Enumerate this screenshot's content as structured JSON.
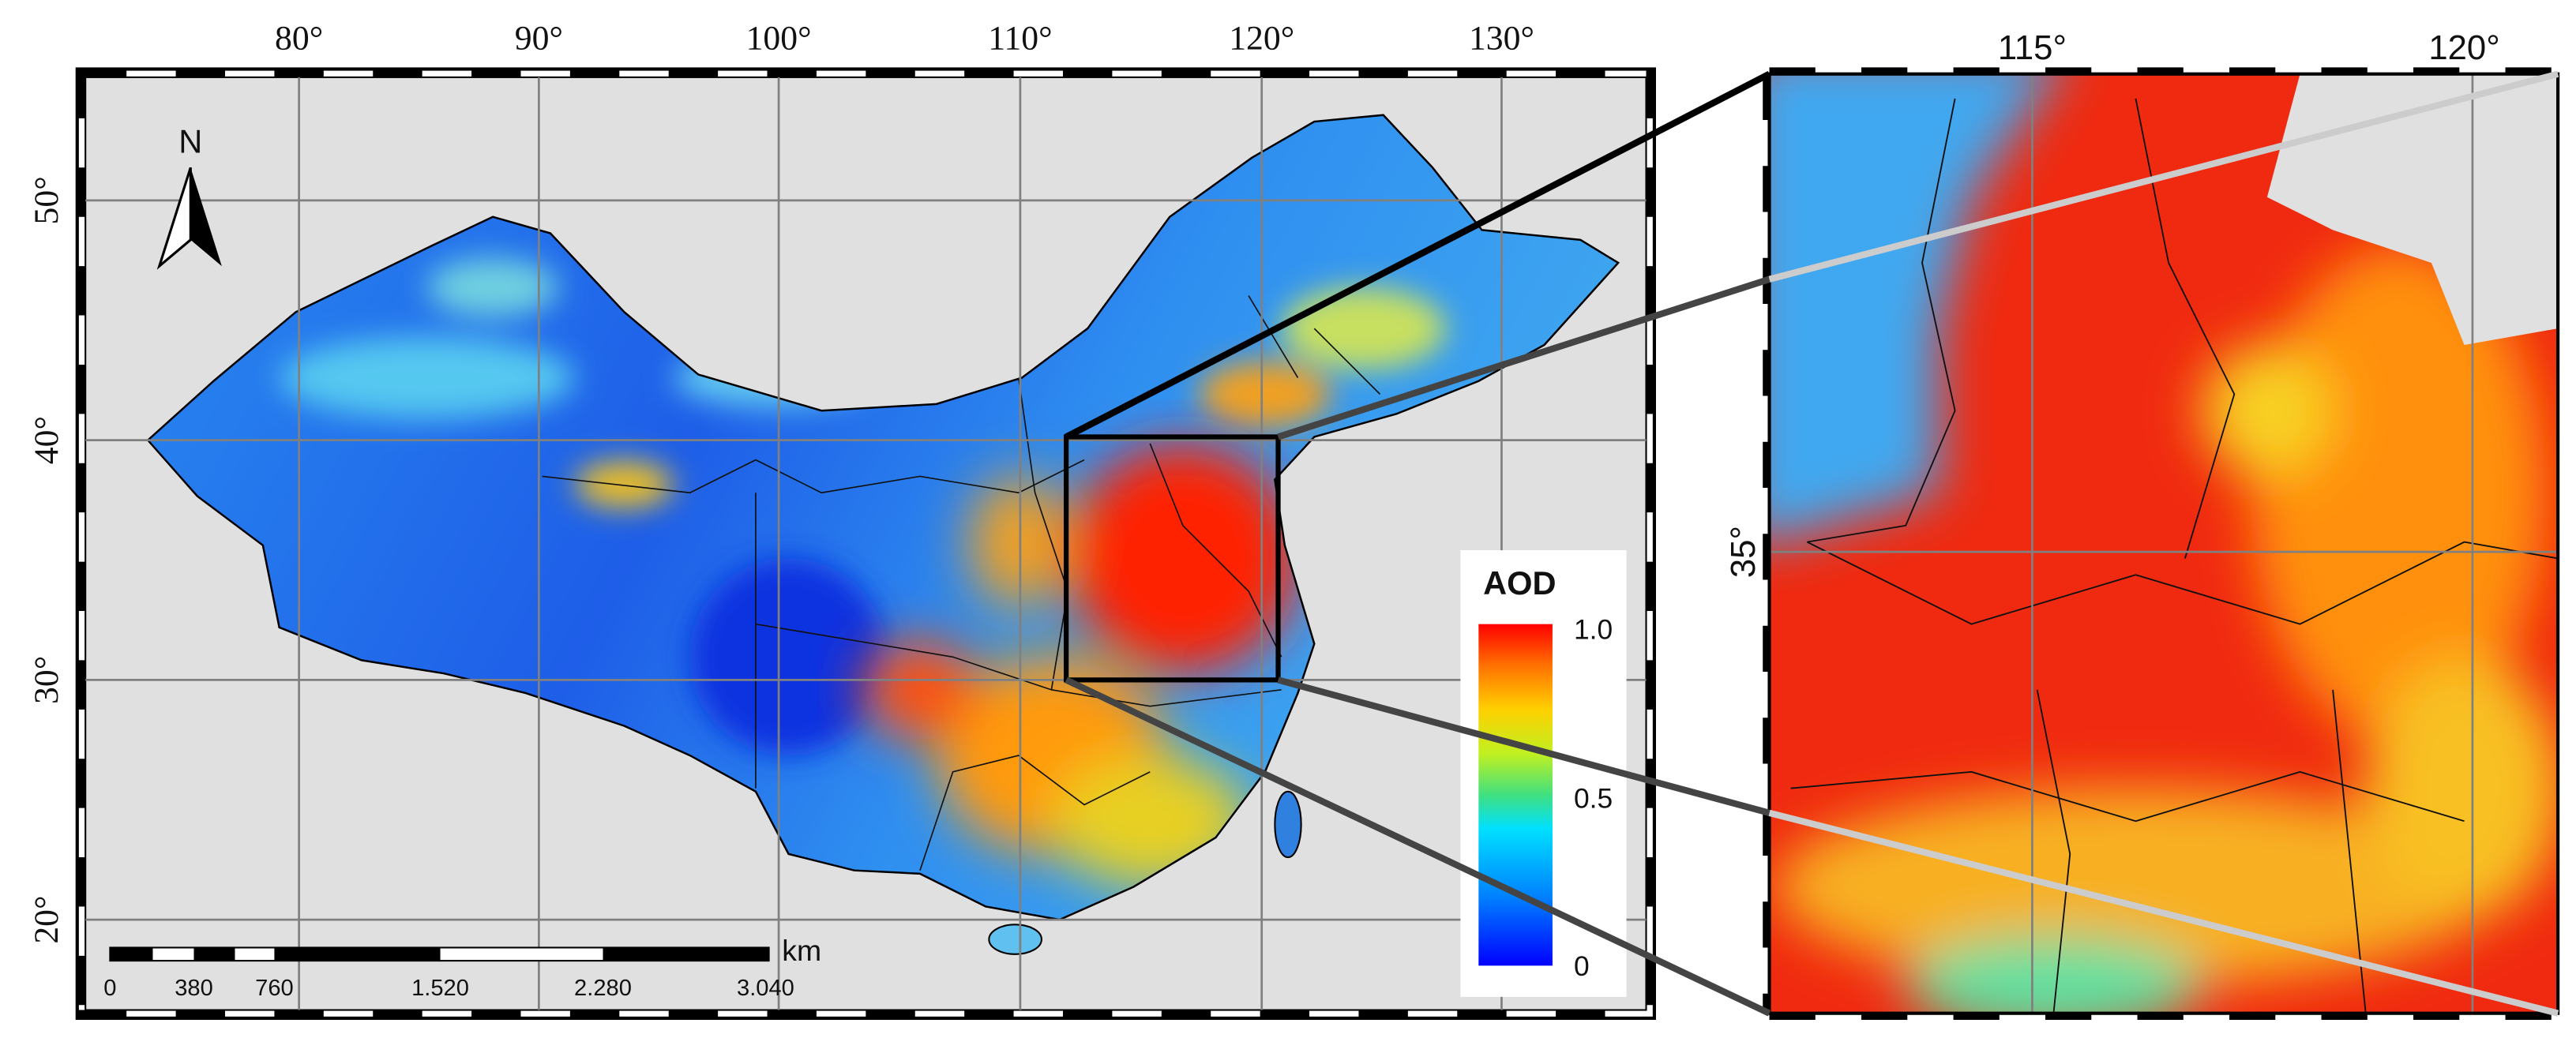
{
  "main_map": {
    "longitude_labels": [
      "80°",
      "90°",
      "100°",
      "110°",
      "120°",
      "130°"
    ],
    "latitude_labels": [
      "50°",
      "40°",
      "30°",
      "20°"
    ],
    "north": "N",
    "scale_bar": {
      "labels": [
        "0",
        "380",
        "760",
        "1.520",
        "2.280",
        "3.040"
      ],
      "unit": "km"
    }
  },
  "legend": {
    "title": "AOD",
    "labels": [
      "1.0",
      "0.5",
      "0"
    ]
  },
  "inset_map": {
    "longitude_labels": [
      "115°",
      "120°"
    ],
    "latitude_labels": [
      "35°"
    ]
  }
}
